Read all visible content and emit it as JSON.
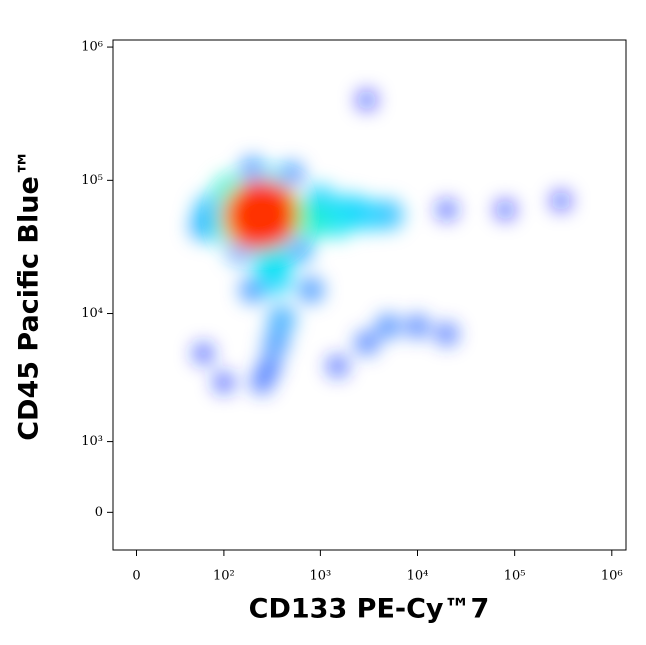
{
  "chart_data": {
    "type": "density",
    "x_label": "CD133 PE-Cy™7",
    "y_label": "CD45 Pacific Blue™",
    "xscale": "logicle",
    "yscale": "logicle",
    "xlim": [
      -15,
      1400000
    ],
    "ylim": [
      -450,
      1130000
    ],
    "xticks": [
      0,
      {
        "value": 100,
        "label": "10²"
      },
      {
        "value": 1000,
        "label": "10³"
      },
      {
        "value": 10000,
        "label": "10⁴"
      },
      {
        "value": 100000,
        "label": "10⁵"
      },
      {
        "value": 1000000,
        "label": "10⁶"
      }
    ],
    "yticks": [
      0,
      {
        "value": 1000,
        "label": "10³"
      },
      {
        "value": 10000,
        "label": "10⁴"
      },
      {
        "value": 100000,
        "label": "10⁵"
      },
      {
        "value": 1000000,
        "label": "10⁶"
      }
    ],
    "colormap": [
      "#0000ff",
      "#0080ff",
      "#00e0ff",
      "#00ff80",
      "#c0ff00",
      "#ffd000",
      "#ff3000"
    ],
    "x": [
      60,
      100,
      1500,
      20000,
      80000,
      300000,
      3000,
      250,
      20000,
      300,
      10000,
      3000,
      5000,
      350,
      500,
      200,
      200,
      800,
      150,
      60,
      400,
      5000,
      70,
      600,
      2000,
      3000,
      1000,
      350,
      320,
      300,
      1500,
      120,
      100,
      800,
      300,
      320,
      150,
      400,
      180,
      320,
      200,
      250
    ],
    "y": [
      5000,
      3000,
      4000,
      60000,
      60000,
      70000,
      400000,
      3000,
      7000,
      4000,
      8000,
      6000,
      8000,
      6000,
      110000,
      120000,
      15000,
      15000,
      30000,
      45000,
      9000,
      55000,
      60000,
      30000,
      60000,
      55000,
      70000,
      18000,
      25000,
      90000,
      50000,
      80000,
      45000,
      50000,
      35000,
      57000,
      50000,
      55000,
      60000,
      25000,
      52000,
      55000
    ],
    "density": [
      0.05,
      0.05,
      0.06,
      0.04,
      0.03,
      0.03,
      0.03,
      0.08,
      0.08,
      0.1,
      0.1,
      0.1,
      0.12,
      0.15,
      0.15,
      0.15,
      0.15,
      0.15,
      0.2,
      0.2,
      0.2,
      0.25,
      0.25,
      0.2,
      0.3,
      0.3,
      0.3,
      0.3,
      0.35,
      0.35,
      0.35,
      0.4,
      0.35,
      0.4,
      0.4,
      0.8,
      0.5,
      0.55,
      0.6,
      0.35,
      0.85,
      1.0
    ]
  }
}
